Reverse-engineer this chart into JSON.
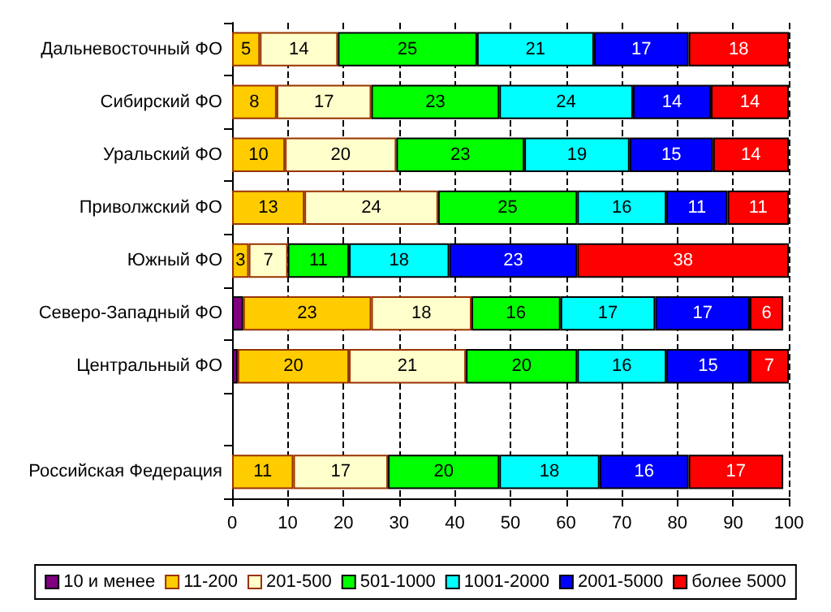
{
  "chart_data": {
    "type": "bar",
    "orientation": "horizontal",
    "stacked": true,
    "categories": [
      "Дальневосточный ФО",
      "Сибирский ФО",
      "Уральский ФО",
      "Приволжский ФО",
      "Южный ФО",
      "Северо-Западный ФО",
      "Центральный ФО",
      null,
      "Российская Федерация"
    ],
    "series": [
      {
        "name": "10 и менее",
        "color": "#800080",
        "values": [
          null,
          null,
          null,
          null,
          null,
          2,
          1,
          null,
          null
        ],
        "value_labels": [
          null,
          null,
          null,
          null,
          null,
          null,
          null,
          null,
          null
        ]
      },
      {
        "name": "11-200",
        "color": "#ffcc00",
        "values": [
          5,
          8,
          9.5,
          13,
          3,
          23,
          20,
          null,
          11
        ],
        "value_labels": [
          "5",
          "8",
          "10",
          "13",
          "3",
          "23",
          "20",
          null,
          "11"
        ]
      },
      {
        "name": "201-500",
        "color": "#ffffcc",
        "values": [
          14,
          17,
          20,
          24,
          7,
          18,
          21,
          null,
          17
        ],
        "value_labels": [
          "14",
          "17",
          "20",
          "24",
          "7",
          "18",
          "21",
          null,
          "17"
        ]
      },
      {
        "name": "501-1000",
        "color": "#00ff00",
        "values": [
          25,
          23,
          23,
          25,
          11,
          16,
          20,
          null,
          20
        ],
        "value_labels": [
          "25",
          "23",
          "23",
          "25",
          "11",
          "16",
          "20",
          null,
          "20"
        ]
      },
      {
        "name": "1001-2000",
        "color": "#00ffff",
        "values": [
          21,
          24,
          18.9,
          16,
          18,
          17,
          16,
          null,
          18
        ],
        "value_labels": [
          "21",
          "24",
          "19",
          "16",
          "18",
          "17",
          "16",
          null,
          "18"
        ]
      },
      {
        "name": "2001-5000",
        "color": "#0000ff",
        "values": [
          17,
          14,
          15,
          11,
          23,
          17,
          15,
          null,
          16
        ],
        "value_labels": [
          "17",
          "14",
          "15",
          "11",
          "23",
          "17",
          "15",
          null,
          "16"
        ]
      },
      {
        "name": "более 5000",
        "color": "#ff0000",
        "values": [
          18,
          14,
          13.6,
          11,
          38,
          6,
          7,
          null,
          17
        ],
        "value_labels": [
          "18",
          "14",
          "14",
          "11",
          "38",
          "6",
          "7",
          null,
          "17"
        ]
      }
    ],
    "xlim": [
      0,
      100
    ],
    "xticks": [
      0,
      10,
      20,
      30,
      40,
      50,
      60,
      70,
      80,
      90,
      100
    ],
    "grid": "x",
    "legend": "bottom"
  }
}
